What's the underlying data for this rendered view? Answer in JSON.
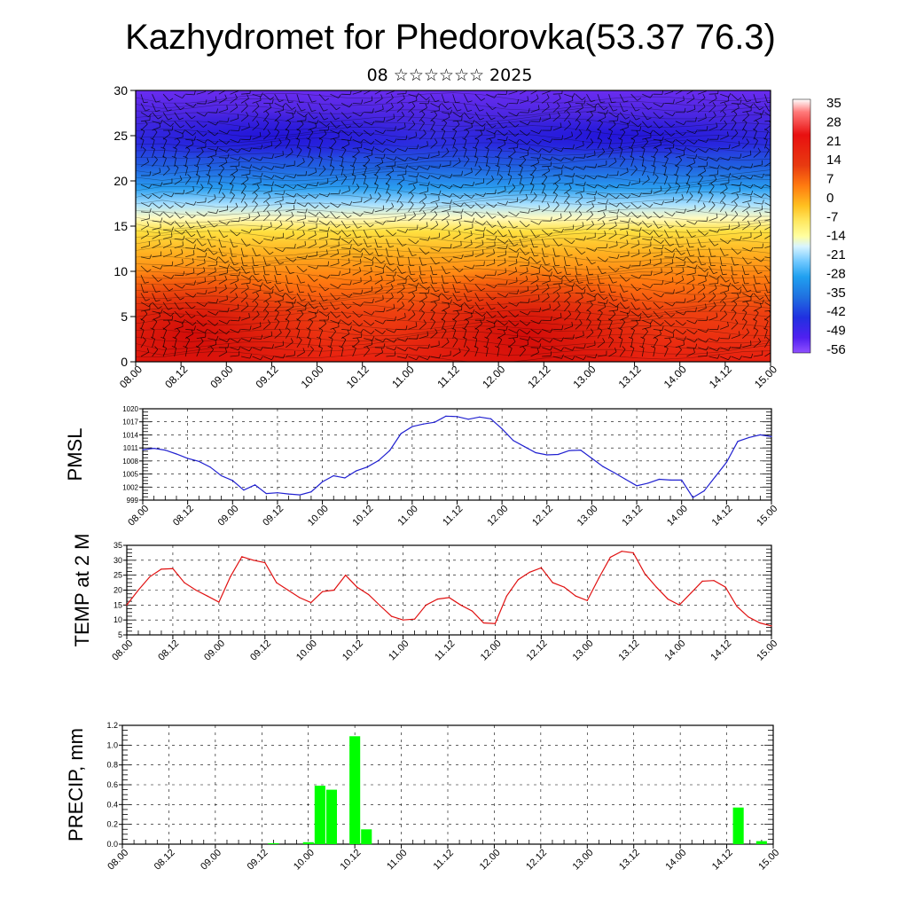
{
  "header": {
    "title": "Kazhydromet for Phedorovka(53.37 76.3)",
    "subtitle": "08 ☆☆☆☆☆☆ 2025"
  },
  "x_tick_labels": [
    "08.00",
    "08.12",
    "09.00",
    "09.12",
    "10.00",
    "10.12",
    "11.00",
    "11.12",
    "12.00",
    "12.12",
    "13.00",
    "13.12",
    "14.00",
    "14.12",
    "15.00"
  ],
  "chart_data": [
    {
      "type": "heatmap",
      "title": "",
      "xlabel": "",
      "ylabel": "",
      "ylim": [
        0,
        30
      ],
      "yticks": [
        0,
        5,
        10,
        15,
        20,
        25,
        30
      ],
      "x_range_days": [
        0,
        7
      ],
      "colorbar": {
        "labels": [
          "35",
          "28",
          "21",
          "14",
          "7",
          "0",
          "-7",
          "-14",
          "-21",
          "-28",
          "-35",
          "-42",
          "-49",
          "-56"
        ],
        "colors": [
          "#ffffff",
          "#ff6b6b",
          "#e01010",
          "#e83a10",
          "#ff8a10",
          "#ffd030",
          "#ffff80",
          "#d0f0ff",
          "#60c0ff",
          "#1090e0",
          "#2060d0",
          "#2030e0",
          "#4020f0",
          "#8040ff"
        ]
      },
      "wind_barbs": true,
      "grid": false,
      "description_levels": {
        "surface_warm_cores": [
          {
            "x": 0.6,
            "y": 3,
            "value": 28
          },
          {
            "x": 4.3,
            "y": 3,
            "value": 28
          }
        ],
        "cold_core_level": 25,
        "cold_core_value": -56
      }
    },
    {
      "type": "line",
      "ylabel": "PMSL",
      "ylim": [
        999,
        1020
      ],
      "yticks": [
        999,
        1002,
        1005,
        1008,
        1011,
        1014,
        1017,
        1020
      ],
      "color": "#2020d0",
      "x": [
        0,
        0.125,
        0.25,
        0.375,
        0.5,
        0.625,
        0.75,
        0.875,
        1,
        1.125,
        1.25,
        1.375,
        1.5,
        1.625,
        1.75,
        1.875,
        2,
        2.125,
        2.25,
        2.375,
        2.5,
        2.625,
        2.75,
        2.875,
        3,
        3.125,
        3.25,
        3.375,
        3.5,
        3.625,
        3.75,
        3.875,
        4,
        4.125,
        4.25,
        4.375,
        4.5,
        4.625,
        4.75,
        4.875,
        5,
        5.125,
        5.25,
        5.375,
        5.5,
        5.625,
        5.75,
        5.875,
        6,
        6.125,
        6.25,
        6.375,
        6.5,
        6.625,
        6.75,
        6.875,
        7
      ],
      "values": [
        1010.6,
        1010.9,
        1010.5,
        1009.6,
        1008.6,
        1007.9,
        1006.6,
        1004.6,
        1003.5,
        1001.3,
        1002.5,
        1000.5,
        1000.7,
        1000.4,
        1000.2,
        1000.9,
        1003.2,
        1004.6,
        1004.1,
        1005.7,
        1006.6,
        1008.1,
        1010.4,
        1014.3,
        1015.9,
        1016.5,
        1016.9,
        1018.3,
        1018.2,
        1017.6,
        1018.1,
        1017.7,
        1015.4,
        1012.7,
        1011.3,
        1009.9,
        1009.4,
        1009.5,
        1010.4,
        1010.5,
        1008.6,
        1006.7,
        1005.3,
        1003.8,
        1002.3,
        1002.9,
        1003.8,
        1003.6,
        1003.6,
        999.6,
        1001.1,
        1004.4,
        1007.7,
        1012.5,
        1013.4,
        1014.0,
        1013.6
      ]
    },
    {
      "type": "line",
      "ylabel": "TEMP at 2 M",
      "ylim": [
        5,
        35
      ],
      "yticks": [
        5,
        10,
        15,
        20,
        25,
        30,
        35
      ],
      "color": "#e01010",
      "x": [
        0,
        0.125,
        0.25,
        0.375,
        0.5,
        0.625,
        0.75,
        0.875,
        1,
        1.125,
        1.25,
        1.375,
        1.5,
        1.625,
        1.75,
        1.875,
        2,
        2.125,
        2.25,
        2.375,
        2.5,
        2.625,
        2.75,
        2.875,
        3,
        3.125,
        3.25,
        3.375,
        3.5,
        3.625,
        3.75,
        3.875,
        4,
        4.125,
        4.25,
        4.375,
        4.5,
        4.625,
        4.75,
        4.875,
        5,
        5.125,
        5.25,
        5.375,
        5.5,
        5.625,
        5.75,
        5.875,
        6,
        6.125,
        6.25,
        6.375,
        6.5,
        6.625,
        6.75,
        6.875,
        7
      ],
      "values": [
        15,
        20,
        24.5,
        27,
        27.2,
        22.5,
        20,
        18,
        16,
        24.5,
        31.2,
        30,
        29.2,
        22.5,
        20,
        17.5,
        15.8,
        19.5,
        20,
        25,
        21,
        18.5,
        14.8,
        11.2,
        10,
        10.3,
        15,
        17,
        17.5,
        15,
        13,
        9,
        8.8,
        18,
        23.5,
        26,
        27.5,
        22.5,
        21,
        18,
        16.5,
        24,
        31,
        33,
        32.5,
        25.5,
        21,
        17,
        15,
        19,
        23,
        23.2,
        21,
        14.5,
        11,
        9,
        8
      ]
    },
    {
      "type": "bar",
      "ylabel": "PRECIP, mm",
      "ylim": [
        0,
        1.2
      ],
      "yticks": [
        "0.0",
        "0.2",
        "0.4",
        "0.6",
        "0.8",
        "1.0",
        "1.2"
      ],
      "color": "#00ff00",
      "x": [
        1.625,
        2,
        2.125,
        2.25,
        2.5,
        2.625,
        6.625,
        6.875
      ],
      "values": [
        0.01,
        0.02,
        0.59,
        0.55,
        1.09,
        0.15,
        0.37,
        0.03
      ],
      "bar_width_days": 0.125
    }
  ]
}
